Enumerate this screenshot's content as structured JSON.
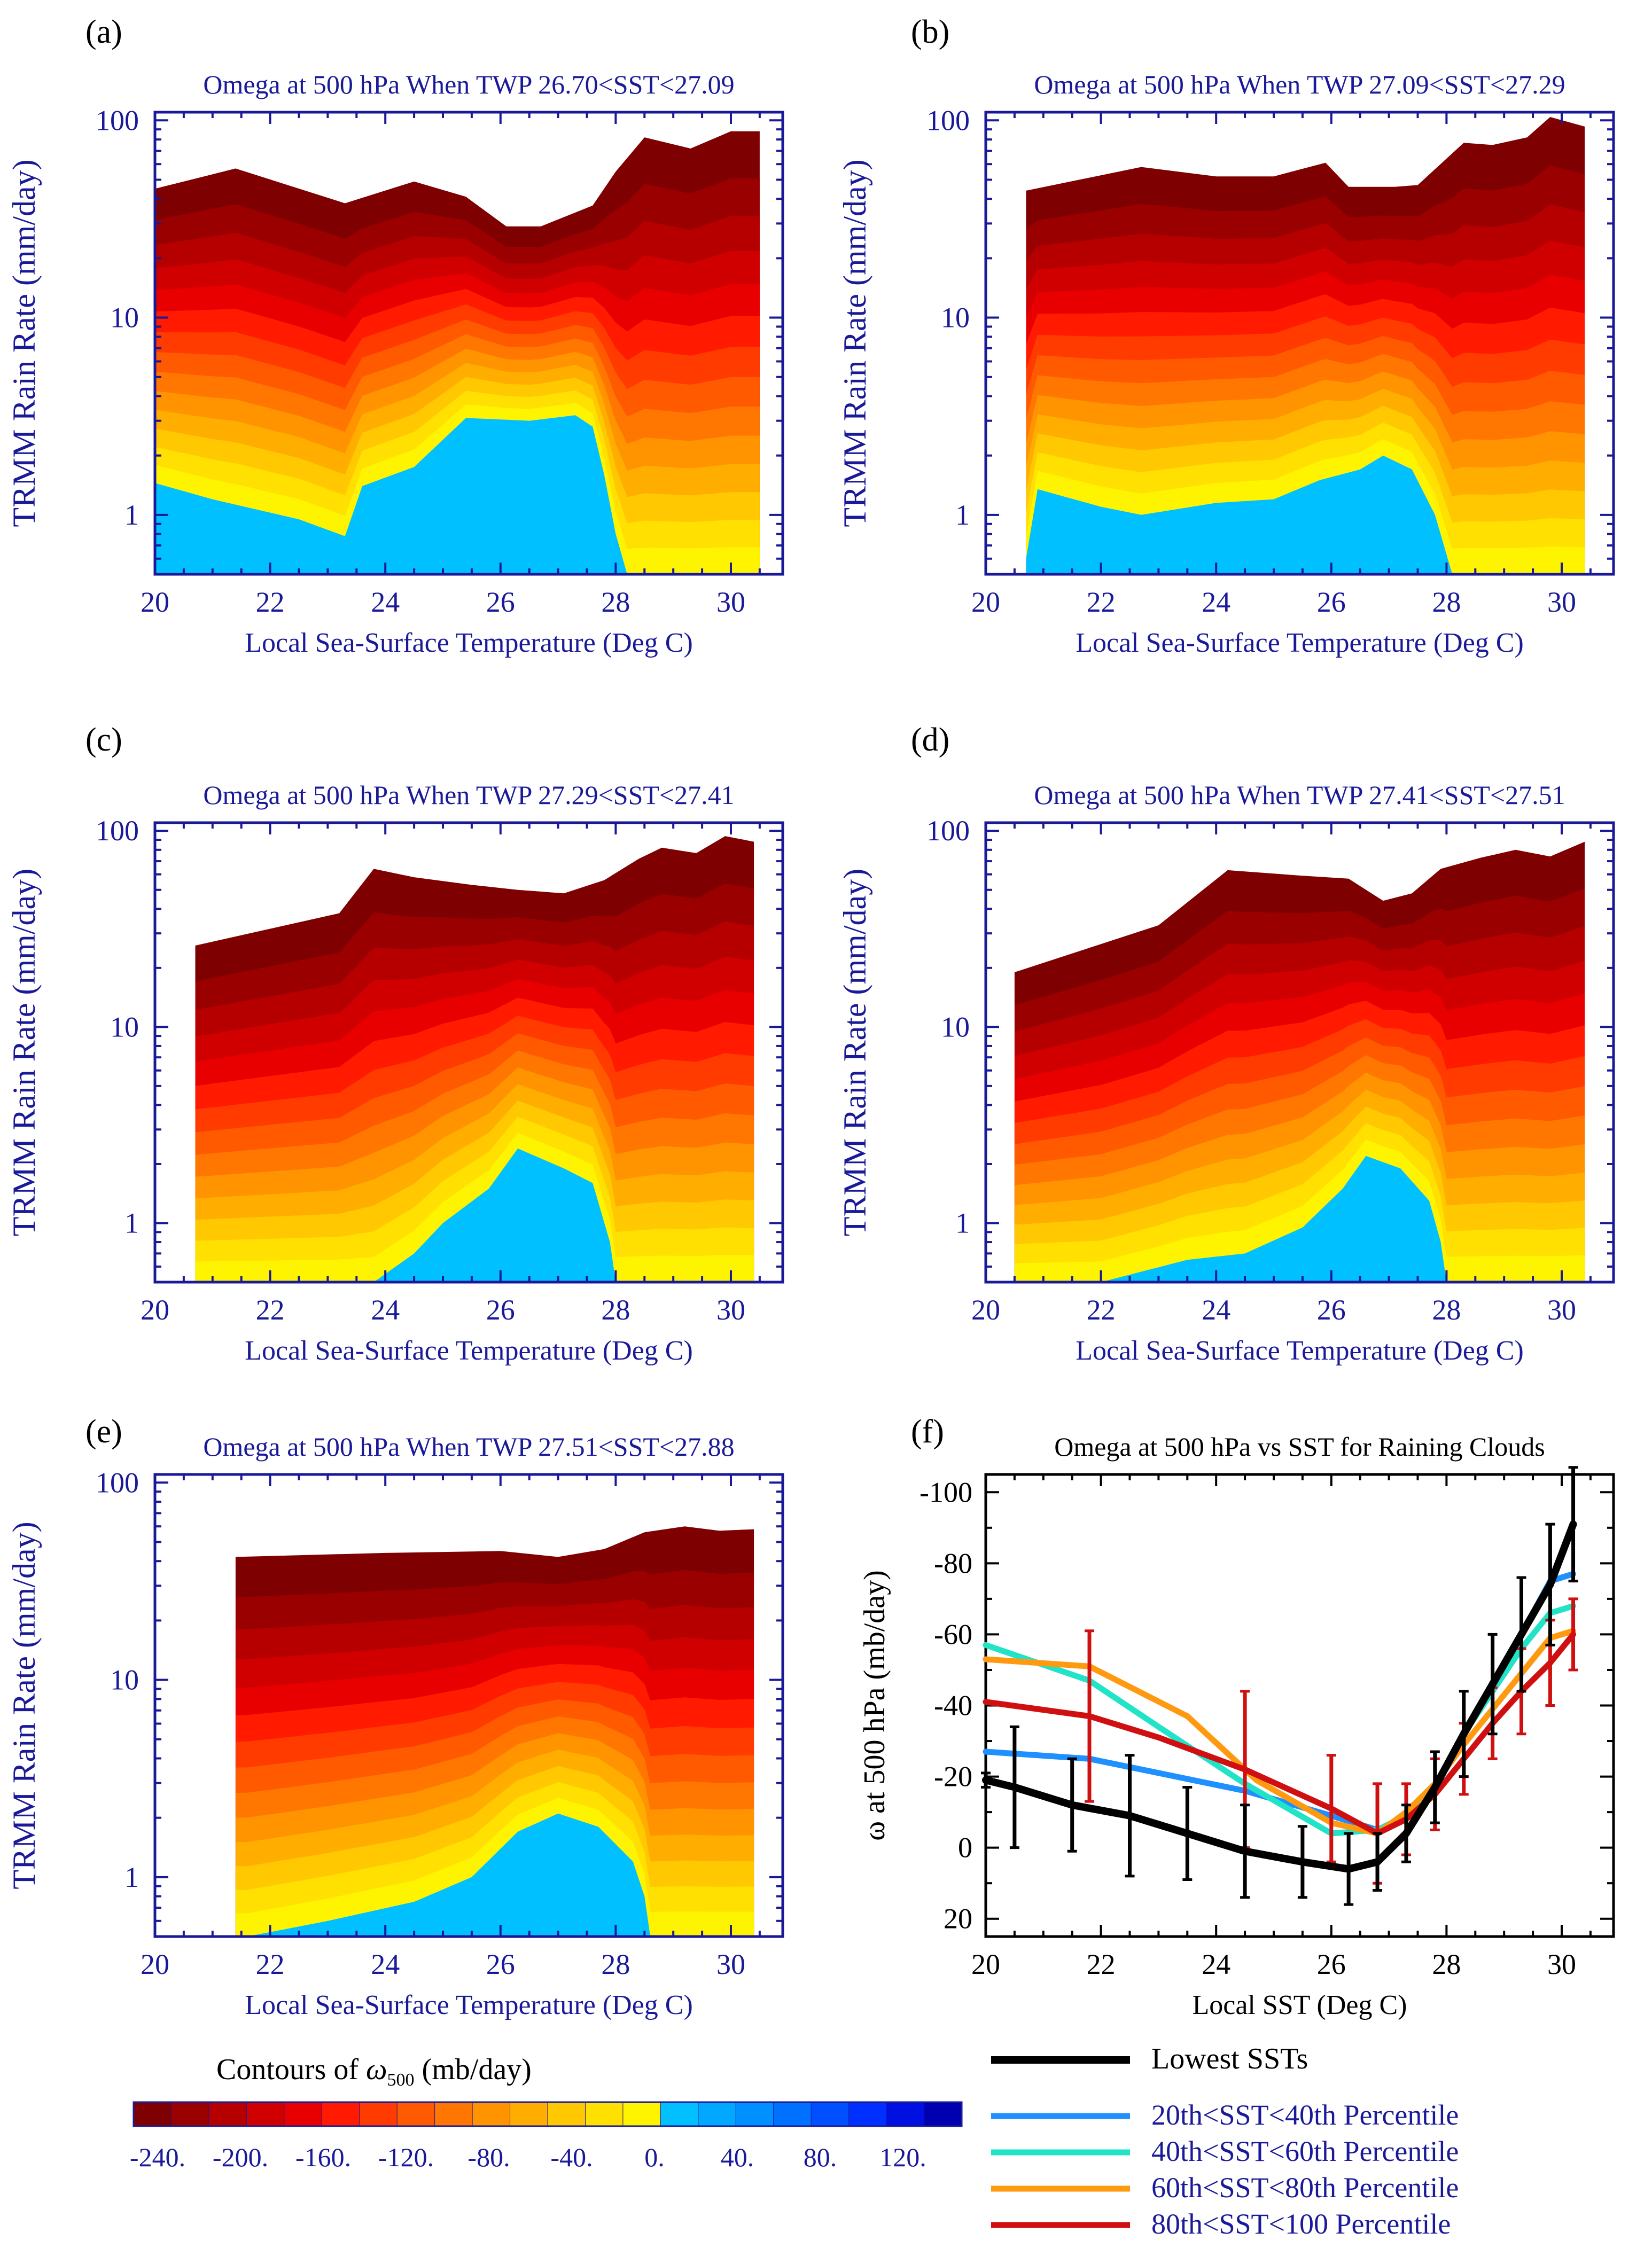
{
  "contour_colors": [
    "#7f0000",
    "#9b0000",
    "#b60000",
    "#d00000",
    "#e80000",
    "#ff1a00",
    "#ff3b00",
    "#ff5a00",
    "#ff7700",
    "#ff9300",
    "#ffae00",
    "#ffc800",
    "#ffe000",
    "#fff400",
    "#00c0ff",
    "#00a8ff",
    "#0090ff",
    "#0070ff",
    "#0050ff",
    "#0030ff",
    "#0010e0",
    "#0000b0"
  ],
  "chart_data": [
    {
      "panel": "(a)",
      "type": "heatmap",
      "title": "Omega at 500 hPa When TWP 26.70<SST<27.09",
      "xlabel": "Local Sea-Surface Temperature (Deg C)",
      "ylabel": "TRMM Rain Rate (mm/day)",
      "xlim": [
        20,
        30.9
      ],
      "ylim": [
        0.5,
        110
      ],
      "xticks": [
        "20",
        "22",
        "24",
        "26",
        "28",
        "30"
      ],
      "yticks": [
        "1",
        "10",
        "100"
      ],
      "top_boundary": [
        [
          20,
          45
        ],
        [
          21.4,
          57
        ],
        [
          23.3,
          38
        ],
        [
          24.5,
          49
        ],
        [
          25.4,
          41
        ],
        [
          26.1,
          29
        ],
        [
          26.7,
          29
        ],
        [
          27.6,
          37
        ],
        [
          28.0,
          55
        ],
        [
          28.5,
          82
        ],
        [
          29.3,
          72
        ],
        [
          30.0,
          88
        ],
        [
          30.5,
          88
        ]
      ],
      "freezing_boundary": [
        [
          20,
          1.45
        ],
        [
          21.0,
          1.2
        ],
        [
          22.5,
          0.95
        ],
        [
          23.3,
          0.78
        ],
        [
          23.6,
          1.4
        ],
        [
          24.5,
          1.75
        ],
        [
          25.4,
          3.1
        ],
        [
          26.5,
          3.0
        ],
        [
          27.3,
          3.2
        ],
        [
          27.6,
          2.8
        ],
        [
          27.8,
          1.6
        ],
        [
          28.0,
          0.8
        ],
        [
          28.2,
          0.5
        ]
      ]
    },
    {
      "panel": "(b)",
      "type": "heatmap",
      "title": "Omega at 500 hPa When TWP 27.09<SST<27.29",
      "xlabel": "Local Sea-Surface Temperature (Deg C)",
      "ylabel": "TRMM Rain Rate (mm/day)",
      "xlim": [
        20,
        30.9
      ],
      "ylim": [
        0.5,
        110
      ],
      "xticks": [
        "20",
        "22",
        "24",
        "26",
        "28",
        "30"
      ],
      "yticks": [
        "1",
        "10",
        "100"
      ],
      "top_boundary": [
        [
          20.7,
          44
        ],
        [
          22.7,
          58
        ],
        [
          24.0,
          52
        ],
        [
          25.0,
          52
        ],
        [
          25.9,
          61
        ],
        [
          26.3,
          46
        ],
        [
          27.1,
          46
        ],
        [
          27.5,
          47
        ],
        [
          28.3,
          77
        ],
        [
          28.8,
          75
        ],
        [
          29.4,
          82
        ],
        [
          29.8,
          104
        ],
        [
          30.4,
          93
        ]
      ],
      "freezing_boundary": [
        [
          20.7,
          0.6
        ],
        [
          20.9,
          1.35
        ],
        [
          22.0,
          1.1
        ],
        [
          22.7,
          1.0
        ],
        [
          24.0,
          1.15
        ],
        [
          25.0,
          1.2
        ],
        [
          25.8,
          1.5
        ],
        [
          26.5,
          1.7
        ],
        [
          26.9,
          2.0
        ],
        [
          27.4,
          1.7
        ],
        [
          27.8,
          1.0
        ],
        [
          28.1,
          0.5
        ]
      ]
    },
    {
      "panel": "(c)",
      "type": "heatmap",
      "title": "Omega at 500 hPa When TWP 27.29<SST<27.41",
      "xlabel": "Local Sea-Surface Temperature (Deg C)",
      "ylabel": "TRMM Rain Rate (mm/day)",
      "xlim": [
        20,
        30.9
      ],
      "ylim": [
        0.5,
        110
      ],
      "xticks": [
        "20",
        "22",
        "24",
        "26",
        "28",
        "30"
      ],
      "yticks": [
        "1",
        "10",
        "100"
      ],
      "top_boundary": [
        [
          20.7,
          26
        ],
        [
          23.2,
          38
        ],
        [
          23.8,
          64
        ],
        [
          24.5,
          58
        ],
        [
          25.5,
          53
        ],
        [
          26.3,
          50
        ],
        [
          27.1,
          48
        ],
        [
          27.8,
          56
        ],
        [
          28.4,
          72
        ],
        [
          28.8,
          82
        ],
        [
          29.4,
          77
        ],
        [
          29.9,
          94
        ],
        [
          30.4,
          88
        ]
      ],
      "freezing_boundary": [
        [
          23.8,
          0.5
        ],
        [
          24.5,
          0.7
        ],
        [
          25.0,
          1.0
        ],
        [
          25.8,
          1.5
        ],
        [
          26.3,
          2.4
        ],
        [
          27.1,
          1.9
        ],
        [
          27.6,
          1.6
        ],
        [
          27.9,
          0.8
        ],
        [
          28.0,
          0.5
        ]
      ]
    },
    {
      "panel": "(d)",
      "type": "heatmap",
      "title": "Omega at 500 hPa When TWP 27.41<SST<27.51",
      "xlabel": "Local Sea-Surface Temperature (Deg C)",
      "ylabel": "TRMM Rain Rate (mm/day)",
      "xlim": [
        20,
        30.9
      ],
      "ylim": [
        0.5,
        110
      ],
      "xticks": [
        "20",
        "22",
        "24",
        "26",
        "28",
        "30"
      ],
      "yticks": [
        "1",
        "10",
        "100"
      ],
      "top_boundary": [
        [
          20.5,
          19
        ],
        [
          23.0,
          33
        ],
        [
          24.2,
          63
        ],
        [
          25.5,
          59
        ],
        [
          26.3,
          57
        ],
        [
          26.9,
          44
        ],
        [
          27.4,
          48
        ],
        [
          27.9,
          64
        ],
        [
          28.6,
          73
        ],
        [
          29.2,
          80
        ],
        [
          29.8,
          74
        ],
        [
          30.4,
          88
        ]
      ],
      "freezing_boundary": [
        [
          22.0,
          0.5
        ],
        [
          23.5,
          0.65
        ],
        [
          24.5,
          0.7
        ],
        [
          25.5,
          0.95
        ],
        [
          26.2,
          1.5
        ],
        [
          26.6,
          2.2
        ],
        [
          27.2,
          1.9
        ],
        [
          27.7,
          1.3
        ],
        [
          27.9,
          0.8
        ],
        [
          28.0,
          0.5
        ]
      ]
    },
    {
      "panel": "(e)",
      "type": "heatmap",
      "title": "Omega at 500 hPa When TWP 27.51<SST<27.88",
      "xlabel": "Local Sea-Surface Temperature (Deg C)",
      "ylabel": "TRMM Rain Rate (mm/day)",
      "xlim": [
        20,
        30.9
      ],
      "ylim": [
        0.5,
        110
      ],
      "xticks": [
        "20",
        "22",
        "24",
        "26",
        "28",
        "30"
      ],
      "yticks": [
        "1",
        "10",
        "100"
      ],
      "top_boundary": [
        [
          21.4,
          42
        ],
        [
          24.0,
          44
        ],
        [
          26.0,
          45
        ],
        [
          27.0,
          42
        ],
        [
          27.8,
          46
        ],
        [
          28.5,
          56
        ],
        [
          29.2,
          60
        ],
        [
          29.8,
          57
        ],
        [
          30.4,
          58
        ]
      ],
      "freezing_boundary": [
        [
          21.6,
          0.5
        ],
        [
          23.0,
          0.6
        ],
        [
          24.5,
          0.75
        ],
        [
          25.5,
          1.0
        ],
        [
          26.3,
          1.7
        ],
        [
          27.0,
          2.1
        ],
        [
          27.7,
          1.8
        ],
        [
          28.3,
          1.2
        ],
        [
          28.5,
          0.8
        ],
        [
          28.6,
          0.5
        ]
      ]
    },
    {
      "panel": "(f)",
      "type": "line",
      "title": "Omega at 500 hPa vs SST for Raining Clouds",
      "xlabel": "Local SST (Deg C)",
      "ylabel": "ω at 500 hPa (mb/day)",
      "xlim": [
        20,
        30.9
      ],
      "ylim": [
        25,
        -105
      ],
      "xticks": [
        "20",
        "22",
        "24",
        "26",
        "28",
        "30"
      ],
      "yticks": [
        "-100",
        "-80",
        "-60",
        "-40",
        "-20",
        "0",
        "20"
      ],
      "series": [
        {
          "name": "Lowest SSTs",
          "color": "#000000",
          "x": [
            20,
            20.5,
            21.5,
            22.5,
            23.5,
            24.5,
            25.5,
            26.3,
            26.8,
            27.3,
            27.8,
            28.3,
            28.8,
            29.3,
            29.8,
            30.2
          ],
          "values": [
            -19,
            -17,
            -12,
            -9,
            -4,
            1,
            4,
            6,
            4,
            -4,
            -17,
            -32,
            -46,
            -60,
            -74,
            -91
          ],
          "err": [
            2,
            17,
            13,
            17,
            13,
            13,
            10,
            10,
            8,
            8,
            10,
            12,
            14,
            16,
            17,
            16
          ]
        },
        {
          "name": "20th<SST<40th Percentile",
          "color": "#1e90ff",
          "x": [
            20,
            21.8,
            23.0,
            24.5,
            26.0,
            26.8,
            27.3,
            27.8,
            28.3,
            28.8,
            29.3,
            29.8,
            30.2
          ],
          "values": [
            -27,
            -25,
            -21,
            -16,
            -9,
            -5,
            -9,
            -17,
            -32,
            -46,
            -60,
            -75,
            -77
          ]
        },
        {
          "name": "40th<SST<60th Percentile",
          "color": "#20e3c8",
          "x": [
            20,
            21.8,
            23.0,
            24.5,
            26.0,
            26.8,
            27.3,
            27.8,
            28.3,
            28.8,
            29.3,
            29.8,
            30.2
          ],
          "values": [
            -57,
            -47,
            -34,
            -18,
            -4,
            -5,
            -9,
            -17,
            -32,
            -44,
            -56,
            -66,
            -68
          ]
        },
        {
          "name": "60th<SST<80th Percentile",
          "color": "#ff9a10",
          "x": [
            20,
            21.8,
            23.5,
            24.7,
            26.0,
            26.8,
            27.3,
            27.8,
            28.3,
            28.8,
            29.3,
            29.8,
            30.2
          ],
          "values": [
            -53,
            -51,
            -37,
            -19,
            -7,
            -4,
            -10,
            -18,
            -29,
            -39,
            -49,
            -59,
            -61
          ]
        },
        {
          "name": "80th<SST<100 Percentile",
          "color": "#d01010",
          "x": [
            20,
            21.8,
            23.0,
            24.5,
            26.0,
            26.8,
            27.3,
            27.8,
            28.3,
            28.8,
            29.3,
            29.8,
            30.2
          ],
          "values": [
            -41,
            -37,
            -31,
            -22,
            -11,
            -4,
            -8,
            -15,
            -25,
            -35,
            -44,
            -52,
            -60
          ],
          "err": [
            0,
            24,
            0,
            22,
            15,
            14,
            10,
            10,
            10,
            10,
            12,
            12,
            10
          ]
        }
      ]
    }
  ],
  "colorbar": {
    "title_main": "Contours of ",
    "title_sym": "ω",
    "title_sub": "500",
    "title_unit": " (mb/day)",
    "tick_labels": [
      "-240.",
      "-200.",
      "-160.",
      "-120.",
      "-80.",
      "-40.",
      "0.",
      "40.",
      "80.",
      "120."
    ]
  }
}
